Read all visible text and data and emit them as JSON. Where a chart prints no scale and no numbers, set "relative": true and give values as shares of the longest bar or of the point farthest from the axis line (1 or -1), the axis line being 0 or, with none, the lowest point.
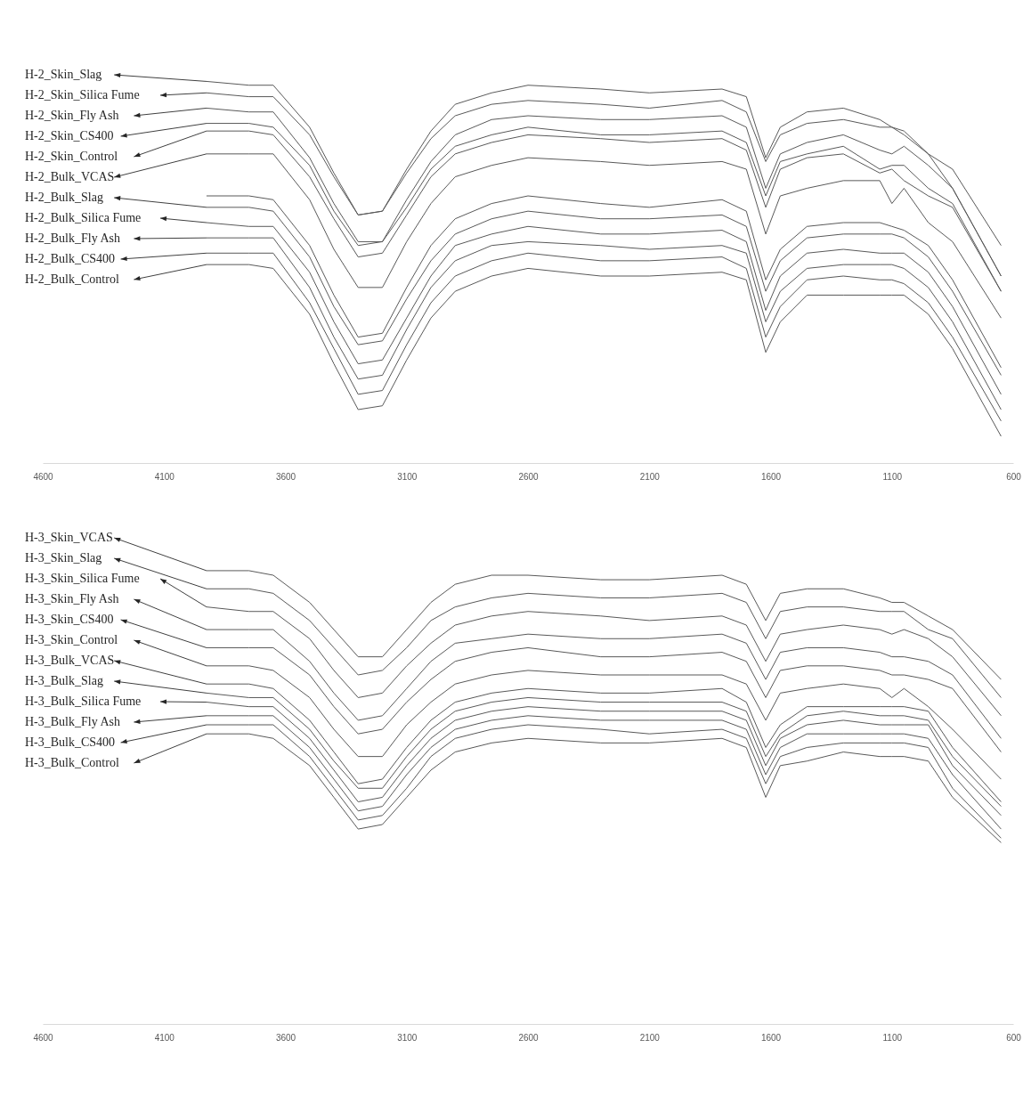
{
  "chart_data": [
    {
      "type": "line",
      "relative": true,
      "xlim": [
        4600,
        600
      ],
      "xticks": [
        4600,
        4100,
        3600,
        3100,
        2600,
        2100,
        1600,
        1100,
        600
      ],
      "x": [
        3925,
        3750,
        3650,
        3500,
        3400,
        3300,
        3200,
        3100,
        3000,
        2900,
        2750,
        2600,
        2300,
        2100,
        1800,
        1700,
        1620,
        1560,
        1450,
        1300,
        1150,
        1100,
        1050,
        950,
        850,
        650
      ],
      "series": [
        {
          "name": "H-2_Skin_Slag",
          "color": "#595959",
          "values": [
            1.0,
            0.99,
            0.99,
            0.88,
            0.76,
            0.65,
            0.66,
            0.77,
            0.87,
            0.94,
            0.97,
            0.99,
            0.98,
            0.97,
            0.98,
            0.96,
            0.8,
            0.88,
            0.92,
            0.93,
            0.9,
            0.88,
            0.86,
            0.81,
            0.77,
            0.57
          ]
        },
        {
          "name": "H-2_Skin_Silica Fume",
          "color": "#595959",
          "values": [
            0.97,
            0.96,
            0.96,
            0.86,
            0.75,
            0.65,
            0.66,
            0.76,
            0.85,
            0.91,
            0.94,
            0.95,
            0.94,
            0.93,
            0.95,
            0.92,
            0.79,
            0.86,
            0.89,
            0.9,
            0.88,
            0.88,
            0.87,
            0.81,
            0.72,
            0.49
          ]
        },
        {
          "name": "H-2_Skin_Fly Ash",
          "color": "#595959",
          "values": [
            0.93,
            0.92,
            0.92,
            0.8,
            0.68,
            0.58,
            0.58,
            0.69,
            0.79,
            0.86,
            0.9,
            0.91,
            0.9,
            0.9,
            0.91,
            0.88,
            0.72,
            0.81,
            0.84,
            0.86,
            0.82,
            0.81,
            0.83,
            0.78,
            0.72,
            0.49
          ]
        },
        {
          "name": "H-2_Skin_CS400",
          "color": "#595959",
          "values": [
            0.89,
            0.89,
            0.88,
            0.78,
            0.66,
            0.57,
            0.58,
            0.67,
            0.77,
            0.83,
            0.86,
            0.88,
            0.86,
            0.86,
            0.87,
            0.84,
            0.7,
            0.79,
            0.81,
            0.83,
            0.77,
            0.78,
            0.78,
            0.72,
            0.68,
            0.45
          ]
        },
        {
          "name": "H-2_Skin_Control",
          "color": "#595959",
          "values": [
            0.87,
            0.87,
            0.86,
            0.75,
            0.64,
            0.54,
            0.55,
            0.65,
            0.75,
            0.81,
            0.84,
            0.86,
            0.85,
            0.84,
            0.85,
            0.82,
            0.67,
            0.77,
            0.8,
            0.81,
            0.76,
            0.77,
            0.74,
            0.7,
            0.67,
            0.45
          ]
        },
        {
          "name": "H-2_Bulk_VCAS",
          "color": "#595959",
          "values": [
            0.81,
            0.81,
            0.81,
            0.69,
            0.56,
            0.46,
            0.46,
            0.58,
            0.68,
            0.75,
            0.78,
            0.8,
            0.79,
            0.78,
            0.79,
            0.77,
            0.6,
            0.7,
            0.72,
            0.74,
            0.74,
            0.68,
            0.72,
            0.63,
            0.58,
            0.38
          ]
        },
        {
          "color": "#595959",
          "values": [
            0.7,
            0.7,
            0.69,
            0.57,
            0.44,
            0.33,
            0.34,
            0.46,
            0.57,
            0.64,
            0.68,
            0.7,
            0.68,
            0.67,
            0.69,
            0.66,
            0.48,
            0.56,
            0.62,
            0.63,
            0.63,
            0.62,
            0.61,
            0.57,
            0.48,
            0.25
          ]
        },
        {
          "name": "H-2_Bulk_Slag",
          "color": "#595959",
          "values": [
            0.67,
            0.67,
            0.66,
            0.54,
            0.41,
            0.31,
            0.32,
            0.43,
            0.53,
            0.6,
            0.64,
            0.66,
            0.64,
            0.64,
            0.65,
            0.62,
            0.45,
            0.53,
            0.59,
            0.6,
            0.6,
            0.6,
            0.59,
            0.54,
            0.45,
            0.23
          ]
        },
        {
          "name": "H-2_Bulk_Silica Fume",
          "color": "#595959",
          "values": [
            0.63,
            0.62,
            0.62,
            0.5,
            0.37,
            0.26,
            0.27,
            0.38,
            0.49,
            0.57,
            0.6,
            0.62,
            0.6,
            0.6,
            0.61,
            0.58,
            0.4,
            0.49,
            0.55,
            0.56,
            0.55,
            0.55,
            0.55,
            0.5,
            0.41,
            0.18
          ]
        },
        {
          "name": "H-2_Bulk_Fly Ash",
          "color": "#595959",
          "values": [
            0.59,
            0.59,
            0.59,
            0.46,
            0.33,
            0.22,
            0.23,
            0.35,
            0.46,
            0.53,
            0.57,
            0.58,
            0.57,
            0.56,
            0.57,
            0.55,
            0.37,
            0.45,
            0.51,
            0.52,
            0.52,
            0.52,
            0.51,
            0.46,
            0.37,
            0.14
          ]
        },
        {
          "name": "H-2_Bulk_CS400",
          "color": "#595959",
          "values": [
            0.55,
            0.55,
            0.55,
            0.42,
            0.3,
            0.18,
            0.19,
            0.31,
            0.42,
            0.49,
            0.53,
            0.55,
            0.53,
            0.53,
            0.54,
            0.51,
            0.33,
            0.41,
            0.48,
            0.49,
            0.48,
            0.48,
            0.47,
            0.42,
            0.33,
            0.11
          ]
        },
        {
          "name": "H-2_Bulk_Control",
          "color": "#595959",
          "values": [
            0.52,
            0.52,
            0.51,
            0.39,
            0.26,
            0.14,
            0.15,
            0.27,
            0.38,
            0.45,
            0.49,
            0.51,
            0.49,
            0.49,
            0.5,
            0.48,
            0.29,
            0.37,
            0.44,
            0.44,
            0.44,
            0.44,
            0.44,
            0.39,
            0.3,
            0.07
          ]
        }
      ]
    },
    {
      "type": "line",
      "relative": true,
      "xlim": [
        4600,
        600
      ],
      "xticks": [
        4600,
        4100,
        3600,
        3100,
        2600,
        2100,
        1600,
        1100,
        600
      ],
      "x": [
        3925,
        3750,
        3650,
        3500,
        3400,
        3300,
        3200,
        3100,
        3000,
        2900,
        2750,
        2600,
        2300,
        2100,
        1800,
        1700,
        1620,
        1560,
        1450,
        1300,
        1150,
        1100,
        1050,
        950,
        850,
        650
      ],
      "series": [
        {
          "name": "H-3_Skin_VCAS",
          "color": "#595959",
          "values": [
            1.0,
            1.0,
            0.99,
            0.93,
            0.87,
            0.81,
            0.81,
            0.87,
            0.93,
            0.97,
            0.99,
            0.99,
            0.98,
            0.98,
            0.99,
            0.97,
            0.89,
            0.95,
            0.96,
            0.96,
            0.94,
            0.93,
            0.93,
            0.9,
            0.87,
            0.76
          ]
        },
        {
          "name": "H-3_Skin_Slag",
          "color": "#595959",
          "values": [
            0.96,
            0.96,
            0.95,
            0.89,
            0.83,
            0.77,
            0.78,
            0.83,
            0.89,
            0.92,
            0.94,
            0.95,
            0.94,
            0.94,
            0.95,
            0.93,
            0.85,
            0.91,
            0.92,
            0.92,
            0.91,
            0.91,
            0.91,
            0.87,
            0.85,
            0.72
          ]
        },
        {
          "name": "H-3_Skin_Silica Fume",
          "color": "#595959",
          "values": [
            0.92,
            0.91,
            0.91,
            0.85,
            0.78,
            0.72,
            0.73,
            0.79,
            0.84,
            0.88,
            0.9,
            0.91,
            0.9,
            0.89,
            0.9,
            0.88,
            0.8,
            0.86,
            0.87,
            0.88,
            0.87,
            0.86,
            0.87,
            0.85,
            0.81,
            0.68
          ]
        },
        {
          "name": "H-3_Skin_Fly Ash",
          "color": "#595959",
          "values": [
            0.87,
            0.87,
            0.87,
            0.8,
            0.73,
            0.67,
            0.68,
            0.74,
            0.8,
            0.84,
            0.85,
            0.86,
            0.85,
            0.85,
            0.86,
            0.84,
            0.76,
            0.82,
            0.83,
            0.83,
            0.82,
            0.81,
            0.81,
            0.8,
            0.77,
            0.63
          ]
        },
        {
          "name": "H-3_Skin_CS400",
          "color": "#595959",
          "values": [
            0.83,
            0.83,
            0.83,
            0.77,
            0.7,
            0.64,
            0.65,
            0.71,
            0.76,
            0.8,
            0.82,
            0.83,
            0.81,
            0.81,
            0.82,
            0.8,
            0.72,
            0.78,
            0.79,
            0.79,
            0.78,
            0.77,
            0.77,
            0.76,
            0.74,
            0.6
          ]
        },
        {
          "name": "H-3_Skin_Control",
          "color": "#595959",
          "values": [
            0.79,
            0.79,
            0.78,
            0.72,
            0.65,
            0.59,
            0.59,
            0.66,
            0.71,
            0.75,
            0.77,
            0.78,
            0.77,
            0.77,
            0.77,
            0.75,
            0.67,
            0.73,
            0.74,
            0.75,
            0.74,
            0.72,
            0.74,
            0.7,
            0.65,
            0.54
          ]
        },
        {
          "name": "H-3_Bulk_VCAS",
          "color": "#595959",
          "values": [
            0.75,
            0.75,
            0.74,
            0.67,
            0.6,
            0.53,
            0.54,
            0.61,
            0.67,
            0.71,
            0.73,
            0.74,
            0.73,
            0.73,
            0.74,
            0.71,
            0.61,
            0.66,
            0.7,
            0.7,
            0.7,
            0.7,
            0.7,
            0.69,
            0.61,
            0.49
          ]
        },
        {
          "name": "H-3_Bulk_Slag",
          "color": "#595959",
          "values": [
            0.73,
            0.72,
            0.72,
            0.65,
            0.58,
            0.52,
            0.52,
            0.59,
            0.65,
            0.69,
            0.71,
            0.72,
            0.71,
            0.71,
            0.71,
            0.69,
            0.59,
            0.64,
            0.68,
            0.69,
            0.68,
            0.68,
            0.68,
            0.67,
            0.59,
            0.48
          ]
        },
        {
          "name": "H-3_Bulk_Silica Fume",
          "color": "#595959",
          "values": [
            0.71,
            0.7,
            0.7,
            0.63,
            0.56,
            0.49,
            0.5,
            0.57,
            0.63,
            0.67,
            0.69,
            0.7,
            0.69,
            0.69,
            0.69,
            0.67,
            0.57,
            0.63,
            0.66,
            0.67,
            0.66,
            0.66,
            0.66,
            0.66,
            0.57,
            0.46
          ]
        },
        {
          "name": "H-3_Bulk_Fly Ash",
          "color": "#595959",
          "values": [
            0.68,
            0.68,
            0.68,
            0.61,
            0.54,
            0.47,
            0.48,
            0.55,
            0.61,
            0.65,
            0.67,
            0.68,
            0.67,
            0.67,
            0.67,
            0.65,
            0.55,
            0.61,
            0.64,
            0.64,
            0.64,
            0.64,
            0.64,
            0.63,
            0.55,
            0.43
          ]
        },
        {
          "name": "H-3_Bulk_CS400",
          "color": "#595959",
          "values": [
            0.66,
            0.66,
            0.66,
            0.59,
            0.52,
            0.45,
            0.46,
            0.52,
            0.59,
            0.63,
            0.65,
            0.66,
            0.65,
            0.64,
            0.65,
            0.63,
            0.53,
            0.59,
            0.61,
            0.62,
            0.62,
            0.62,
            0.62,
            0.61,
            0.52,
            0.41
          ]
        },
        {
          "name": "H-3_Bulk_Control",
          "color": "#595959",
          "values": [
            0.64,
            0.64,
            0.63,
            0.57,
            0.5,
            0.43,
            0.44,
            0.5,
            0.56,
            0.6,
            0.62,
            0.63,
            0.62,
            0.62,
            0.63,
            0.61,
            0.5,
            0.57,
            0.58,
            0.6,
            0.59,
            0.59,
            0.59,
            0.58,
            0.5,
            0.4
          ]
        }
      ]
    }
  ]
}
